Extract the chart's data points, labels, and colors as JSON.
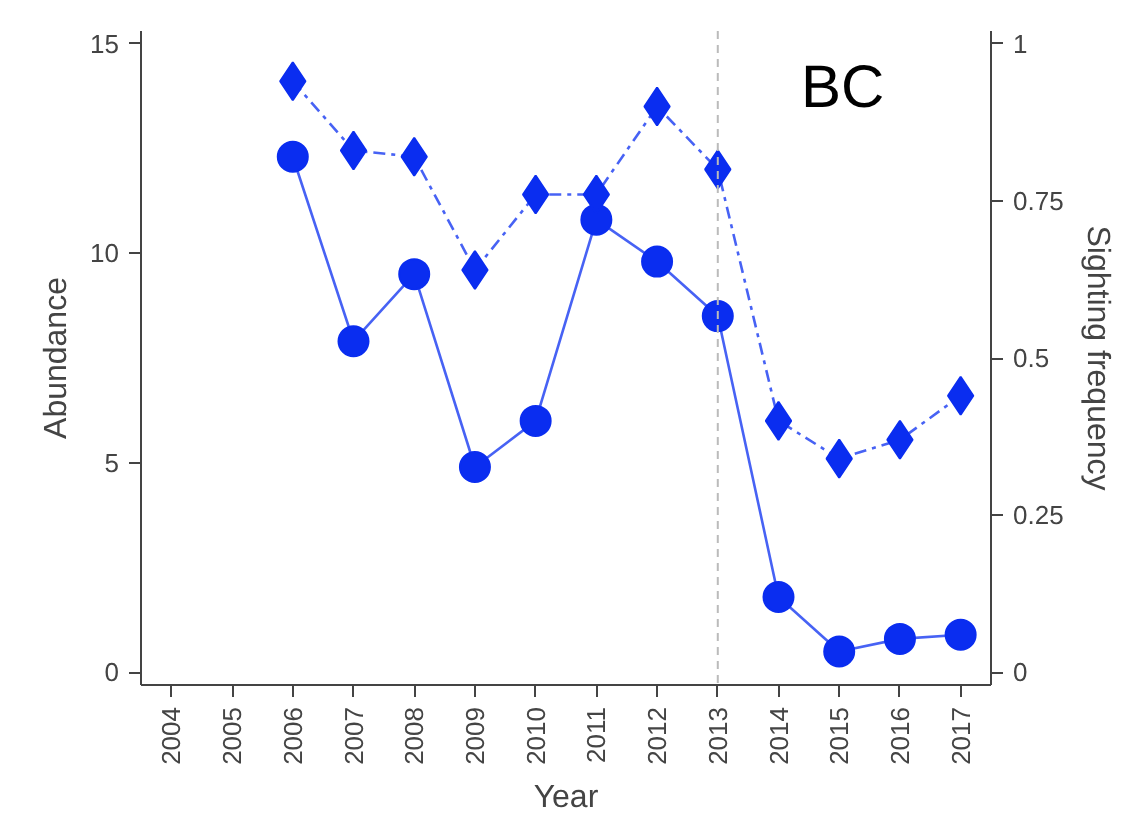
{
  "chart_data": {
    "type": "line",
    "xlabel": "Year",
    "ylabel": "Abundance",
    "y2label": "Sighting frequency",
    "x": [
      2006,
      2007,
      2008,
      2009,
      2010,
      2011,
      2012,
      2013,
      2014,
      2015,
      2016,
      2017
    ],
    "series": [
      {
        "color": "#0a2df0",
        "marker": "circle",
        "line_style": "solid",
        "values": [
          12.3,
          7.9,
          9.5,
          4.9,
          6.0,
          10.8,
          9.8,
          8.5,
          1.8,
          0.5,
          0.8,
          0.9
        ]
      },
      {
        "axis": "y2",
        "color": "#0a2df0",
        "marker": "diamond",
        "line_style": "dashed",
        "values": [
          0.94,
          0.83,
          0.82,
          0.64,
          0.76,
          0.76,
          0.9,
          0.8,
          0.4,
          0.34,
          0.37,
          0.44
        ]
      }
    ],
    "xlim": [
      2003.5,
      2017.5
    ],
    "xticks": [
      2004,
      2005,
      2006,
      2007,
      2008,
      2009,
      2010,
      2011,
      2012,
      2013,
      2014,
      2015,
      2016,
      2017
    ],
    "ylim": [
      -0.3,
      15.3
    ],
    "yticks": [
      0,
      5,
      10,
      15
    ],
    "y2lim": [
      -0.02,
      1.02
    ],
    "y2ticks": [
      0,
      0.25,
      0.5,
      0.75,
      1
    ],
    "ref_lines": [
      {
        "axis": "x",
        "value": 2013,
        "color": "#bbbbbb",
        "line_style": "dashed"
      }
    ],
    "annotations": [
      "BC"
    ],
    "grid": false
  }
}
